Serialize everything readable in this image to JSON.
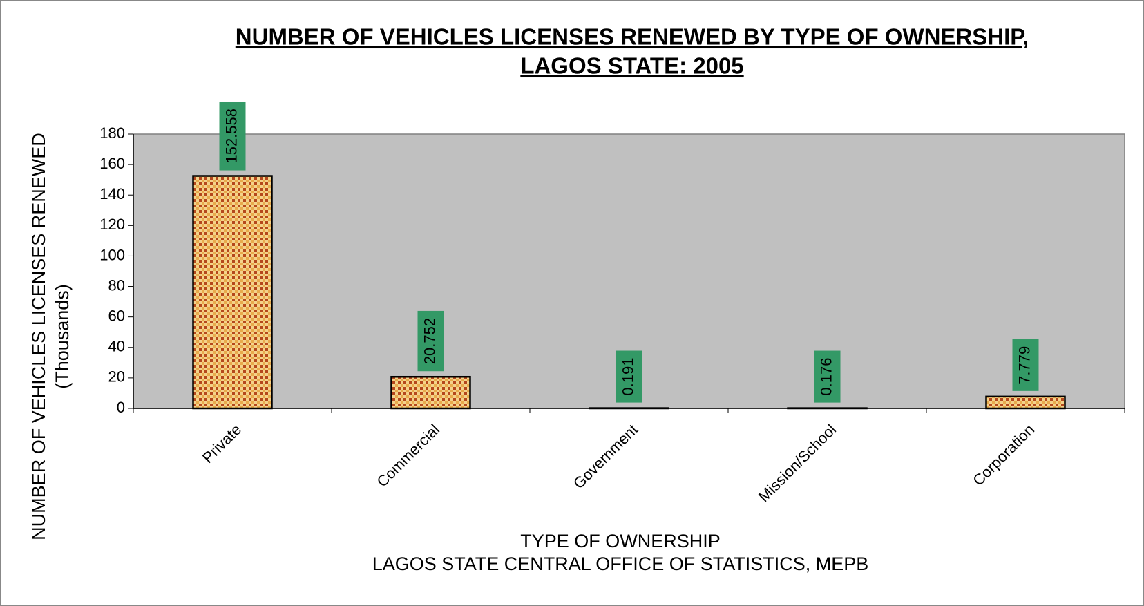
{
  "chart_data": {
    "type": "bar",
    "title": [
      "NUMBER OF VEHICLES LICENSES RENEWED BY TYPE OF OWNERSHIP,",
      "LAGOS STATE: 2005"
    ],
    "y_label": [
      "NUMBER OF VEHICLES LICENSES RENEWED",
      "(Thousands)"
    ],
    "x_label": "TYPE OF OWNERSHIP",
    "source": "LAGOS STATE CENTRAL OFFICE OF STATISTICS, MEPB",
    "categories": [
      "Private",
      "Commercial",
      "Government",
      "Mission/School",
      "Corporation"
    ],
    "values": [
      152.558,
      20.752,
      0.191,
      0.176,
      7.779
    ],
    "color": "#d9822b",
    "label_color": "#339966",
    "plot_background": "#c0c0c0",
    "ylim": [
      0,
      180
    ],
    "yticks": [
      0,
      20,
      40,
      60,
      80,
      100,
      120,
      140,
      160,
      180
    ],
    "grid": false
  }
}
